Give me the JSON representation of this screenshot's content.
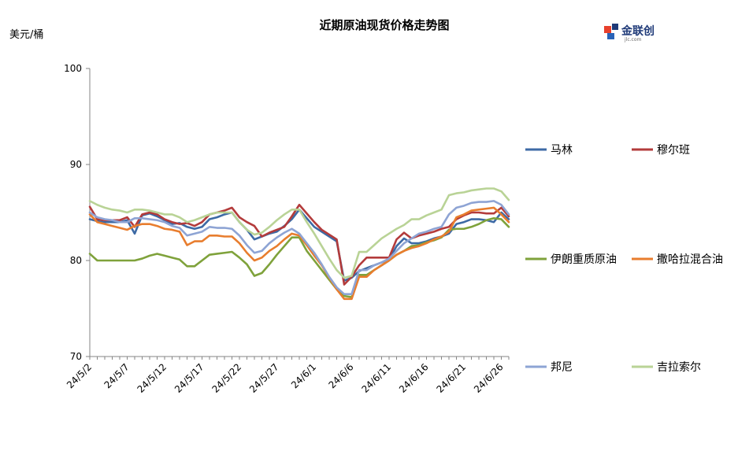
{
  "title": "近期原油现货价格走势图",
  "unit_label": "美元/桶",
  "logo": {
    "text": "金联创",
    "sub": "jlc.com"
  },
  "chart_data": {
    "type": "line",
    "title": "近期原油现货价格走势图",
    "ylabel": "美元/桶",
    "xlabel": "",
    "ylim": [
      70,
      100
    ],
    "yticks": [
      70,
      80,
      90,
      100
    ],
    "grid": false,
    "legend_position": "right",
    "x_tick_labels": [
      "24/5/2",
      "24/5/7",
      "24/5/12",
      "24/5/17",
      "24/5/22",
      "24/5/27",
      "24/6/1",
      "24/6/6",
      "24/6/11",
      "24/6/16",
      "24/6/21",
      "24/6/26"
    ],
    "x_tick_indices": [
      0,
      5,
      10,
      15,
      20,
      25,
      30,
      35,
      40,
      45,
      50,
      55
    ],
    "x_count": 57,
    "series": [
      {
        "name": "马林",
        "color": "#3d6aa5",
        "values": [
          84.3,
          84.1,
          84.0,
          84.0,
          84.0,
          84.2,
          82.8,
          84.7,
          84.9,
          84.6,
          84.2,
          83.8,
          83.9,
          83.5,
          83.3,
          83.5,
          84.3,
          84.5,
          84.8,
          85.0,
          84.0,
          83.2,
          82.2,
          82.5,
          82.8,
          83.0,
          83.6,
          84.3,
          85.3,
          84.4,
          83.5,
          83.0,
          82.5,
          82.0,
          77.9,
          78.2,
          78.9,
          79.2,
          79.5,
          79.8,
          80.1,
          81.5,
          82.3,
          81.8,
          81.8,
          82.0,
          82.3,
          82.5,
          82.8,
          83.8,
          84.0,
          84.3,
          84.3,
          84.2,
          84.0,
          85.0,
          84.3
        ]
      },
      {
        "name": "穆尔班",
        "color": "#b33b3b",
        "values": [
          85.6,
          84.3,
          84.2,
          84.2,
          84.2,
          84.5,
          83.5,
          84.8,
          85.0,
          84.8,
          84.3,
          84.0,
          83.8,
          83.9,
          83.6,
          84.0,
          84.8,
          85.0,
          85.2,
          85.5,
          84.5,
          84.0,
          83.6,
          82.5,
          82.9,
          83.2,
          83.5,
          84.6,
          85.8,
          84.9,
          84.0,
          83.2,
          82.7,
          82.2,
          77.5,
          78.3,
          79.5,
          80.3,
          80.3,
          80.3,
          80.3,
          82.2,
          82.9,
          82.3,
          82.6,
          82.8,
          83.0,
          83.3,
          83.5,
          84.3,
          84.7,
          85.0,
          85.0,
          84.9,
          84.9,
          85.5,
          84.6
        ]
      },
      {
        "name": "伊朗重质原油",
        "color": "#7fa23b",
        "values": [
          80.7,
          80.0,
          80.0,
          80.0,
          80.0,
          80.0,
          80.0,
          80.2,
          80.5,
          80.7,
          80.5,
          80.3,
          80.1,
          79.4,
          79.4,
          80.0,
          80.6,
          80.7,
          80.8,
          80.9,
          80.3,
          79.6,
          78.4,
          78.7,
          79.6,
          80.6,
          81.5,
          82.4,
          82.4,
          81.0,
          80.0,
          79.0,
          78.0,
          77.0,
          76.3,
          76.2,
          78.5,
          78.5,
          79.0,
          79.5,
          80.0,
          80.6,
          81.0,
          81.5,
          81.6,
          81.9,
          82.1,
          82.4,
          83.2,
          83.3,
          83.3,
          83.5,
          83.8,
          84.2,
          84.4,
          84.3,
          83.5
        ]
      },
      {
        "name": "撒哈拉混合油",
        "color": "#e87d2e",
        "values": [
          84.8,
          84.0,
          83.8,
          83.6,
          83.4,
          83.2,
          83.6,
          83.8,
          83.8,
          83.6,
          83.3,
          83.2,
          83.0,
          81.6,
          82.0,
          82.0,
          82.6,
          82.6,
          82.5,
          82.5,
          81.8,
          80.8,
          80.0,
          80.3,
          81.0,
          81.5,
          82.2,
          82.8,
          82.6,
          81.6,
          80.5,
          79.5,
          78.2,
          77.0,
          76.0,
          76.0,
          78.3,
          78.3,
          79.0,
          79.5,
          80.0,
          80.6,
          81.0,
          81.3,
          81.5,
          81.8,
          82.2,
          82.5,
          83.0,
          84.5,
          84.8,
          85.2,
          85.3,
          85.4,
          85.5,
          84.8,
          84.0
        ]
      },
      {
        "name": "邦尼",
        "color": "#8ea4d4",
        "values": [
          85.0,
          84.5,
          84.3,
          84.2,
          84.0,
          84.0,
          84.4,
          84.4,
          84.3,
          84.2,
          84.0,
          83.6,
          83.4,
          82.6,
          82.8,
          83.0,
          83.5,
          83.4,
          83.4,
          83.3,
          82.6,
          81.6,
          80.8,
          81.0,
          81.8,
          82.4,
          82.9,
          83.3,
          82.8,
          81.8,
          80.8,
          79.6,
          78.3,
          77.2,
          76.5,
          76.5,
          79.0,
          79.0,
          79.5,
          79.8,
          80.2,
          81.0,
          81.8,
          82.3,
          82.8,
          83.0,
          83.3,
          83.5,
          84.8,
          85.5,
          85.7,
          86.0,
          86.1,
          86.1,
          86.2,
          85.8,
          84.8
        ]
      },
      {
        "name": "吉拉索尔",
        "color": "#b9d396",
        "values": [
          86.2,
          85.8,
          85.5,
          85.3,
          85.2,
          85.0,
          85.3,
          85.3,
          85.2,
          85.0,
          84.8,
          84.8,
          84.5,
          84.0,
          84.2,
          84.5,
          84.8,
          85.0,
          85.0,
          85.0,
          84.0,
          83.2,
          82.7,
          82.9,
          83.5,
          84.2,
          84.8,
          85.3,
          85.3,
          84.0,
          82.8,
          81.5,
          80.2,
          79.0,
          78.2,
          78.4,
          80.9,
          80.9,
          81.6,
          82.3,
          82.8,
          83.3,
          83.7,
          84.3,
          84.3,
          84.7,
          85.0,
          85.3,
          86.8,
          87.0,
          87.1,
          87.3,
          87.4,
          87.5,
          87.5,
          87.2,
          86.3
        ]
      }
    ]
  }
}
